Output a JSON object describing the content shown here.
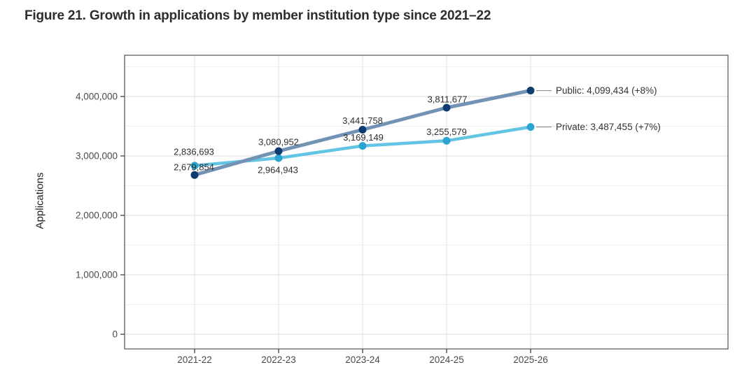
{
  "title": "Figure 21. Growth in applications by member institution type since 2021–22",
  "chart_data": {
    "type": "line",
    "title": "Figure 21. Growth in applications by member institution type since 2021–22",
    "xlabel": "",
    "ylabel": "Applications",
    "categories": [
      "2021-22",
      "2022-23",
      "2023-24",
      "2024-25",
      "2025-26"
    ],
    "series": [
      {
        "name": "Public",
        "values": [
          2679854,
          3080952,
          3441758,
          3811677,
          4099434
        ],
        "point_labels": [
          "2,679,854",
          "3,080,952",
          "3,441,758",
          "3,811,677",
          null
        ],
        "end_label": "Public: 4,099,434 (+8%)",
        "line_color": "#7393b5",
        "point_color": "#0e3c70"
      },
      {
        "name": "Private",
        "values": [
          2836693,
          2964943,
          3169149,
          3255579,
          3487455
        ],
        "point_labels": [
          "2,836,693",
          "2,964,943",
          "3,169,149",
          "3,255,579",
          null
        ],
        "end_label": "Private: 3,487,455 (+7%)",
        "line_color": "#63c5e3",
        "point_color": "#2aa5d2"
      }
    ],
    "yticks": [
      {
        "value": 0,
        "label": "0"
      },
      {
        "value": 1000000,
        "label": "1,000,000"
      },
      {
        "value": 2000000,
        "label": "2,000,000"
      },
      {
        "value": 3000000,
        "label": "3,000,000"
      },
      {
        "value": 4000000,
        "label": "4,000,000"
      }
    ],
    "ylim": [
      0,
      4500000
    ],
    "grid": true,
    "legend_position": "direct-labels-right",
    "label_offsets": {
      "Public": [
        [
          -1,
          -11
        ],
        [
          0,
          -13
        ],
        [
          0,
          -13
        ],
        [
          1,
          -12
        ],
        null
      ],
      "Private": [
        [
          -1,
          -20
        ],
        [
          -1,
          17
        ],
        [
          1,
          -12
        ],
        [
          0,
          -13
        ],
        null
      ]
    }
  },
  "colors": {
    "background": "#ffffff",
    "grid_major": "#e4e4e4",
    "grid_minor": "#f0f0f0",
    "panel_border": "#5f5f5f",
    "tick_mark": "#3f3f3f",
    "axis_text": "#4a4a4a",
    "data_label_text": "#2e2e2e",
    "end_label_text": "#333333",
    "connector": "#909090",
    "title_text": "#2d2d2d"
  }
}
